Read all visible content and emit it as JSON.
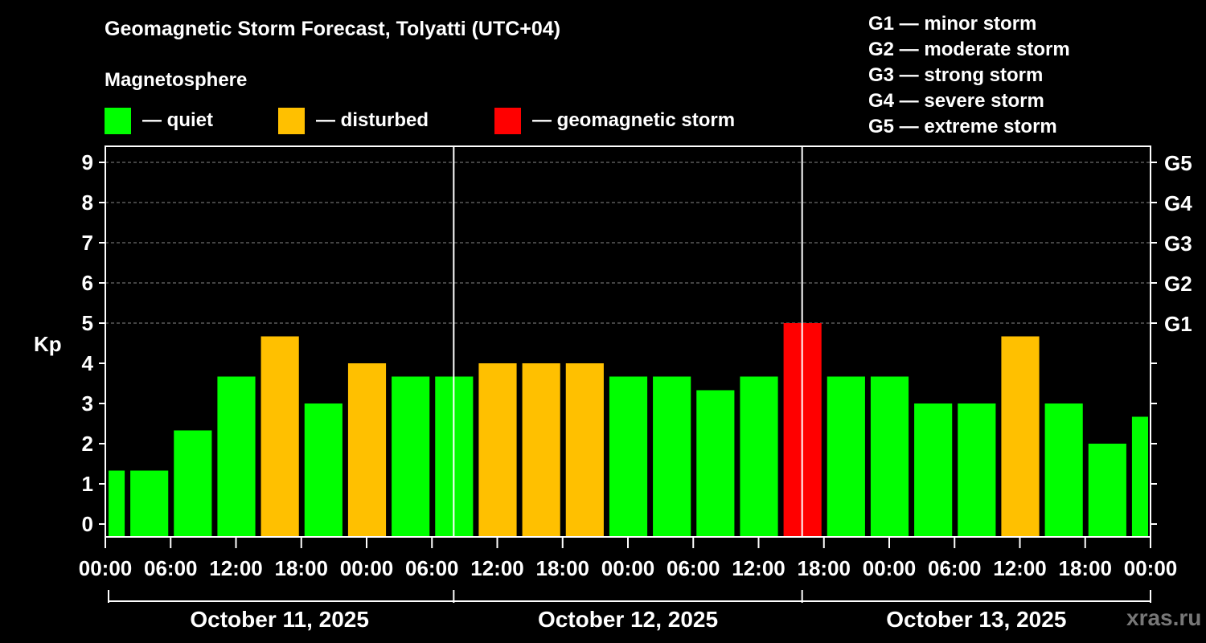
{
  "title": "Geomagnetic Storm Forecast, Tolyatti (UTC+04)",
  "legend": {
    "heading": "Magnetosphere",
    "items": [
      {
        "label": "— quiet",
        "color": "#00ff00"
      },
      {
        "label": "— disturbed",
        "color": "#ffc000"
      },
      {
        "label": "— geomagnetic storm",
        "color": "#ff0000"
      }
    ]
  },
  "storm_scale": [
    "G1 — minor storm",
    "G2 — moderate storm",
    "G3 — strong storm",
    "G4 — severe storm",
    "G5 — extreme storm"
  ],
  "watermark": "xras.ru",
  "chart_data": {
    "type": "bar",
    "title": "Geomagnetic Storm Forecast, Tolyatti (UTC+04)",
    "ylabel": "Kp",
    "ylim": [
      0,
      9
    ],
    "y_ticks": [
      "0",
      "1",
      "2",
      "3",
      "4",
      "5",
      "6",
      "7",
      "8",
      "9"
    ],
    "right_ticks": [
      {
        "value": 5,
        "label": "G1"
      },
      {
        "value": 6,
        "label": "G2"
      },
      {
        "value": 7,
        "label": "G3"
      },
      {
        "value": 8,
        "label": "G4"
      },
      {
        "value": 9,
        "label": "G5"
      }
    ],
    "x_tick_labels": [
      "00:00",
      "06:00",
      "12:00",
      "18:00",
      "00:00",
      "06:00",
      "12:00",
      "18:00",
      "00:00",
      "06:00",
      "12:00",
      "18:00",
      "00:00",
      "06:00",
      "12:00",
      "18:00",
      "00:00"
    ],
    "days": [
      "October 11, 2025",
      "October 12, 2025",
      "October 13, 2025"
    ],
    "interval_hours": 3,
    "grid": "dashed horizontal at Kp 5-9",
    "series": [
      {
        "name": "Kp",
        "values": [
          1.33,
          1.33,
          2.33,
          3.67,
          4.67,
          3.0,
          4.0,
          3.67,
          3.67,
          4.0,
          4.0,
          4.0,
          3.67,
          3.67,
          3.33,
          3.67,
          5.0,
          3.67,
          3.67,
          3.0,
          3.0,
          4.67,
          3.0,
          2.0,
          2.67
        ],
        "status": [
          "quiet",
          "quiet",
          "quiet",
          "quiet",
          "disturbed",
          "quiet",
          "disturbed",
          "quiet",
          "quiet",
          "disturbed",
          "disturbed",
          "disturbed",
          "quiet",
          "quiet",
          "quiet",
          "quiet",
          "storm",
          "quiet",
          "quiet",
          "quiet",
          "quiet",
          "disturbed",
          "quiet",
          "quiet",
          "quiet"
        ]
      }
    ]
  }
}
